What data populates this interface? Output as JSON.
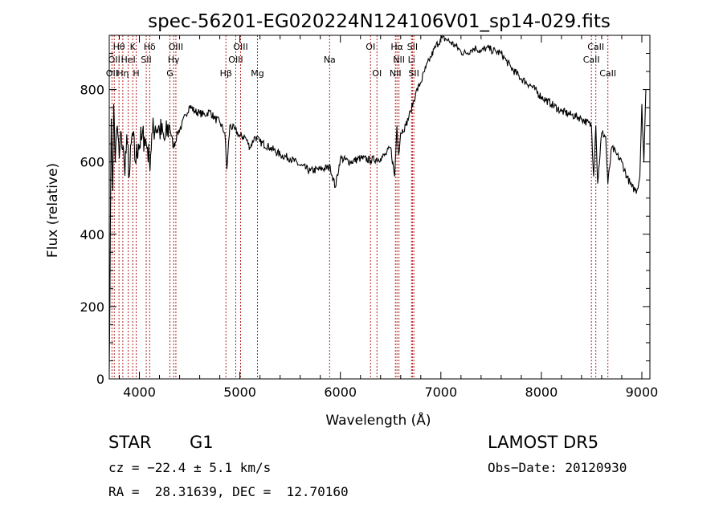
{
  "chart_data": {
    "type": "line",
    "title": "spec-56201-EG020224N124106V01_sp14-029.fits",
    "xlabel": "Wavelength (Å)",
    "ylabel": "Flux (relative)",
    "xlim": [
      3700,
      9080
    ],
    "ylim": [
      0,
      950
    ],
    "xticks": [
      4000,
      5000,
      6000,
      7000,
      8000,
      9000
    ],
    "yticks": [
      0,
      200,
      400,
      600,
      800
    ],
    "grid": false,
    "line_color": "#000000",
    "marker_color": "#b22222",
    "series": [
      {
        "x": [
          3700,
          3720,
          3735,
          3745,
          3760,
          3780,
          3800,
          3820,
          3850,
          3880,
          3900,
          3930,
          3960,
          3990,
          4020,
          4050,
          4080,
          4100,
          4130,
          4160,
          4200,
          4250,
          4300,
          4340,
          4380,
          4420,
          4460,
          4500,
          4550,
          4600,
          4650,
          4700,
          4750,
          4800,
          4850,
          4870,
          4900,
          4950,
          5000,
          5050,
          5100,
          5150,
          5200,
          5300,
          5400,
          5500,
          5600,
          5700,
          5800,
          5900,
          5950,
          6000,
          6100,
          6200,
          6300,
          6400,
          6450,
          6500,
          6540,
          6563,
          6580,
          6600,
          6650,
          6700,
          6750,
          6800,
          6850,
          6900,
          6950,
          7000,
          7050,
          7100,
          7150,
          7200,
          7250,
          7300,
          7350,
          7400,
          7450,
          7500,
          7550,
          7600,
          7650,
          7700,
          7800,
          7900,
          8000,
          8100,
          8200,
          8300,
          8400,
          8498,
          8520,
          8542,
          8560,
          8600,
          8640,
          8662,
          8700,
          8750,
          8800,
          8850,
          8900,
          8950,
          8980,
          9000,
          9020,
          9040
        ],
        "values": [
          20,
          720,
          520,
          760,
          600,
          700,
          610,
          680,
          590,
          650,
          560,
          680,
          600,
          650,
          660,
          670,
          640,
          600,
          680,
          700,
          690,
          660,
          700,
          640,
          680,
          700,
          730,
          755,
          740,
          735,
          730,
          740,
          720,
          710,
          680,
          580,
          700,
          690,
          670,
          670,
          640,
          670,
          655,
          640,
          620,
          610,
          590,
          575,
          580,
          585,
          530,
          610,
          600,
          610,
          605,
          610,
          620,
          640,
          560,
          700,
          620,
          680,
          700,
          740,
          790,
          820,
          860,
          890,
          920,
          940,
          940,
          930,
          920,
          905,
          900,
          910,
          915,
          905,
          915,
          910,
          905,
          900,
          880,
          860,
          830,
          810,
          780,
          760,
          740,
          730,
          720,
          700,
          560,
          700,
          540,
          680,
          670,
          540,
          640,
          620,
          600,
          560,
          530,
          520,
          560,
          760,
          600,
          800
        ]
      }
    ],
    "lines": [
      {
        "wl": 3727,
        "label": "OII",
        "row": 3
      },
      {
        "wl": 3750,
        "label": "OII",
        "row": 2
      },
      {
        "wl": 3797,
        "label": "Hθ",
        "row": 1
      },
      {
        "wl": 3835,
        "label": "Hη",
        "row": 3
      },
      {
        "wl": 3889,
        "label": "HeI",
        "row": 2
      },
      {
        "wl": 3934,
        "label": "K",
        "row": 1
      },
      {
        "wl": 3968,
        "label": "H",
        "row": 3
      },
      {
        "wl": 4068,
        "label": "SII",
        "row": 2
      },
      {
        "wl": 4102,
        "label": "Hδ",
        "row": 1
      },
      {
        "wl": 4304,
        "label": "G",
        "row": 3
      },
      {
        "wl": 4341,
        "label": "Hγ",
        "row": 2
      },
      {
        "wl": 4363,
        "label": "OIII",
        "row": 1
      },
      {
        "wl": 4861,
        "label": "Hβ",
        "row": 3
      },
      {
        "wl": 4959,
        "label": "OIII",
        "row": 2
      },
      {
        "wl": 5007,
        "label": "OIII",
        "row": 1
      },
      {
        "wl": 5175,
        "label": "Mg",
        "row": 3
      },
      {
        "wl": 5893,
        "label": "Na",
        "row": 2
      },
      {
        "wl": 6300,
        "label": "OI",
        "row": 1
      },
      {
        "wl": 6364,
        "label": "OI",
        "row": 3
      },
      {
        "wl": 6548,
        "label": "NII",
        "row": 3
      },
      {
        "wl": 6563,
        "label": "Hα",
        "row": 1
      },
      {
        "wl": 6583,
        "label": "NII",
        "row": 2
      },
      {
        "wl": 6708,
        "label": "Li",
        "row": 2
      },
      {
        "wl": 6717,
        "label": "SII",
        "row": 1
      },
      {
        "wl": 6731,
        "label": "SII",
        "row": 3
      },
      {
        "wl": 8498,
        "label": "CaII",
        "row": 2
      },
      {
        "wl": 8542,
        "label": "CaII",
        "row": 1
      },
      {
        "wl": 8662,
        "label": "CaII",
        "row": 3
      }
    ]
  },
  "info": {
    "class": "STAR",
    "subclass": "G1",
    "survey": "LAMOST DR5",
    "cz": "cz = −22.4 ± 5.1 km/s",
    "obs_date": "Obs−Date: 20120930",
    "coords": "RA =  28.31639, DEC =  12.70160"
  }
}
